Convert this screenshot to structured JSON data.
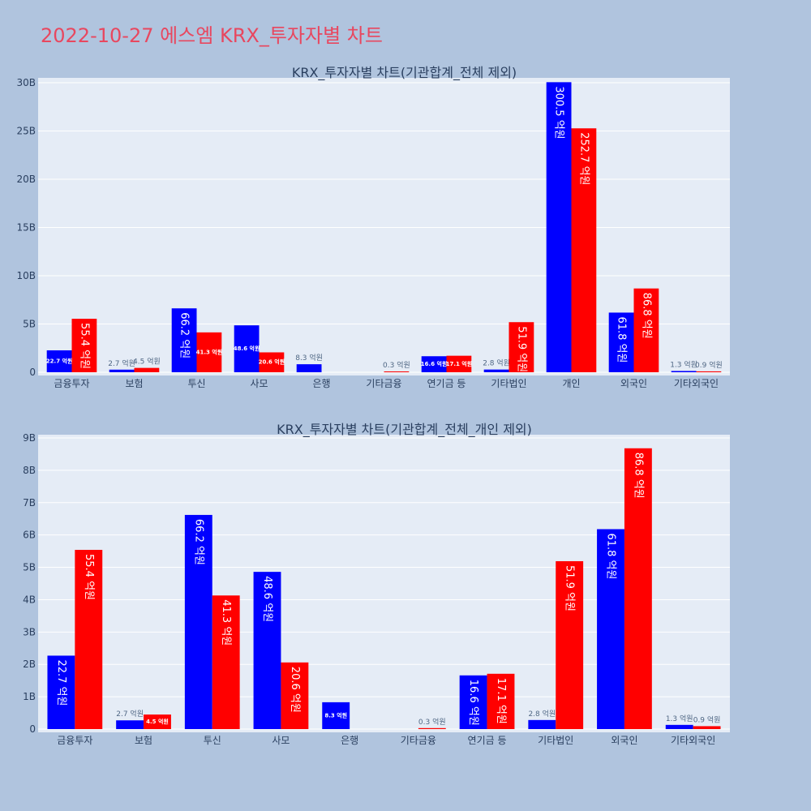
{
  "page": {
    "title": "2022-10-27 에스엠 KRX_투자자별 차트"
  },
  "colors": {
    "buy": "#0000ff",
    "sell": "#ff0000",
    "plot_bg": "#e5ecf6",
    "paper_bg": "#b0c4de",
    "title": "#e8475f"
  },
  "chart_data": [
    {
      "type": "bar",
      "title": "KRX_투자자별 차트(기관합계_전체 제외)",
      "categories": [
        "금융투자",
        "보험",
        "투신",
        "사모",
        "은행",
        "기타금융",
        "연기금 등",
        "기타법인",
        "개인",
        "외국인",
        "기타외국인"
      ],
      "series": [
        {
          "values": [
            2.27,
            0.27,
            6.62,
            4.86,
            0.83,
            0,
            1.66,
            0.28,
            30.05,
            6.18,
            0.13
          ],
          "labels": [
            "22.7 억원",
            "2.7 억원",
            "66.2 억원",
            "48.6 억원",
            "8.3 억원",
            "",
            "16.6 억원",
            "2.8 억원",
            "300.5 억원",
            "61.8 억원",
            "1.3 억원"
          ]
        },
        {
          "values": [
            5.54,
            0.45,
            4.13,
            2.06,
            0,
            0.03,
            1.71,
            5.19,
            25.27,
            8.68,
            0.09
          ],
          "labels": [
            "55.4 억원",
            "4.5 억원",
            "41.3 억원",
            "20.6 억원",
            "",
            "0.3 억원",
            "17.1 억원",
            "51.9 억원",
            "252.7 억원",
            "86.8 억원",
            "0.9 억원"
          ]
        }
      ],
      "ylim": [
        0,
        30.5
      ],
      "yticks": [
        0,
        5,
        10,
        15,
        20,
        25,
        30
      ],
      "ytick_labels": [
        "0",
        "5B",
        "10B",
        "15B",
        "20B",
        "25B",
        "30B"
      ]
    },
    {
      "type": "bar",
      "title": "KRX_투자자별 차트(기관합계_전체_개인 제외)",
      "categories": [
        "금융투자",
        "보험",
        "투신",
        "사모",
        "은행",
        "기타금융",
        "연기금 등",
        "기타법인",
        "외국인",
        "기타외국인"
      ],
      "series": [
        {
          "values": [
            2.27,
            0.27,
            6.62,
            4.86,
            0.83,
            0,
            1.66,
            0.28,
            6.18,
            0.13
          ],
          "labels": [
            "22.7 억원",
            "2.7 억원",
            "66.2 억원",
            "48.6 억원",
            "8.3 억원",
            "",
            "16.6 억원",
            "2.8 억원",
            "61.8 억원",
            "1.3 억원"
          ]
        },
        {
          "values": [
            5.54,
            0.45,
            4.13,
            2.06,
            0,
            0.03,
            1.71,
            5.19,
            8.68,
            0.09
          ],
          "labels": [
            "55.4 억원",
            "4.5 억원",
            "41.3 억원",
            "20.6 억원",
            "",
            "0.3 억원",
            "17.1 억원",
            "51.9 억원",
            "86.8 억원",
            "0.9 억원"
          ]
        }
      ],
      "ylim": [
        0,
        9.1
      ],
      "yticks": [
        0,
        1,
        2,
        3,
        4,
        5,
        6,
        7,
        8,
        9
      ],
      "ytick_labels": [
        "0",
        "1B",
        "2B",
        "3B",
        "4B",
        "5B",
        "6B",
        "7B",
        "8B",
        "9B"
      ]
    }
  ]
}
